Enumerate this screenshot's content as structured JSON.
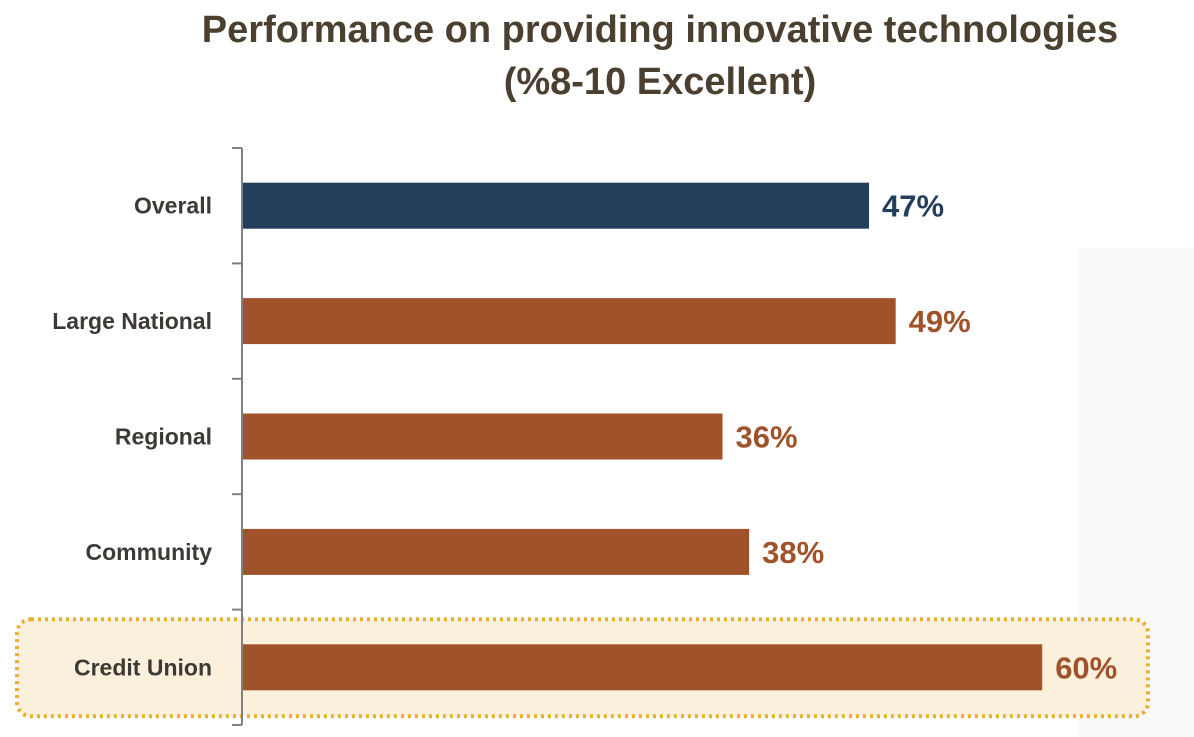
{
  "chart_data": {
    "type": "bar",
    "orientation": "horizontal",
    "title": "Performance on providing innovative technologies",
    "subtitle": "(%8-10 Excellent)",
    "categories": [
      "Overall",
      "Large National",
      "Regional",
      "Community",
      "Credit Union"
    ],
    "values": [
      47,
      49,
      36,
      38,
      60
    ],
    "value_labels": [
      "47%",
      "49%",
      "36%",
      "38%",
      "60%"
    ],
    "unit": "%",
    "xlim": [
      0,
      70
    ],
    "grid": false,
    "highlighted": "Credit Union",
    "colors": {
      "overall": "#233f5c",
      "segment": "#a0522a",
      "highlight_fill": "#faf0dc",
      "highlight_border": "#e8b030",
      "label": "#3d3a36"
    }
  }
}
